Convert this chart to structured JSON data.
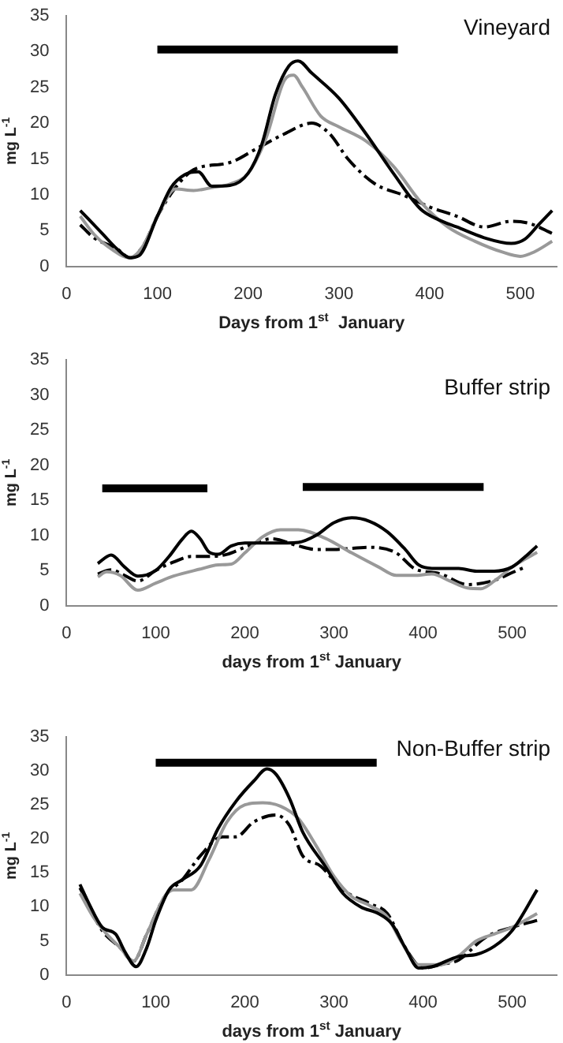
{
  "chart_data": [
    {
      "type": "line",
      "annotations": [
        "Vineyard"
      ],
      "xlabel": "Days from 1$^{st}$  January",
      "ylabel": "mg L$^{-1}$",
      "xlim": [
        0,
        540
      ],
      "xticks": [
        0,
        100,
        200,
        300,
        400,
        500
      ],
      "ylim": [
        0,
        35
      ],
      "yticks": [
        0,
        5,
        10,
        15,
        20,
        25,
        30,
        35
      ],
      "grid": false,
      "legend": false,
      "series": [
        {
          "type": "line",
          "color": "#000000",
          "line_style": "solid",
          "x": [
            15,
            40,
            55,
            70,
            80,
            100,
            115,
            130,
            145,
            160,
            180,
            200,
            215,
            230,
            245,
            255,
            270,
            300,
            330,
            360,
            390,
            410,
            430,
            460,
            490,
            505,
            520,
            535
          ],
          "values": [
            7.8,
            4.5,
            2.5,
            1.2,
            1.5,
            7,
            11,
            12.8,
            13.2,
            11.2,
            11.3,
            13,
            17,
            24,
            28,
            28.7,
            27,
            23.5,
            18.5,
            13,
            8,
            6.5,
            5.5,
            4,
            3.2,
            3.8,
            5.8,
            7.8
          ]
        },
        {
          "type": "line",
          "color": "#999999",
          "line_style": "solid",
          "x": [
            15,
            30,
            45,
            70,
            85,
            100,
            120,
            140,
            160,
            180,
            200,
            220,
            240,
            250,
            260,
            280,
            300,
            330,
            360,
            390,
            420,
            450,
            480,
            500,
            515,
            535
          ],
          "values": [
            7,
            4.5,
            2.8,
            1.2,
            3,
            7,
            10.8,
            10.6,
            11,
            11.5,
            13,
            18,
            26,
            26.7,
            25,
            21,
            19.5,
            17.5,
            14,
            9,
            5.5,
            3.5,
            2,
            1.4,
            2,
            3.5
          ]
        },
        {
          "type": "line",
          "color": "#000000",
          "line_style": "dashed",
          "x": [
            15,
            30,
            55,
            70,
            85,
            100,
            120,
            140,
            180,
            210,
            240,
            270,
            290,
            310,
            340,
            370,
            400,
            430,
            460,
            490,
            510,
            535
          ],
          "values": [
            5.8,
            4,
            2.5,
            1.2,
            3,
            7,
            11,
            13.5,
            14.5,
            16.5,
            18.5,
            20,
            18.5,
            15,
            11.5,
            10,
            8.3,
            7,
            5.5,
            6.3,
            6,
            4.6
          ]
        },
        {
          "type": "line",
          "color": "#000000",
          "line_style": "solid",
          "x": [
            100,
            365
          ],
          "values": [
            30.3,
            30.3
          ]
        }
      ]
    },
    {
      "type": "line",
      "annotations": [
        "Buffer strip"
      ],
      "xlabel": "days from 1$^{st}$ January",
      "ylabel": "mg L$^{-1}$",
      "xlim": [
        0,
        550
      ],
      "xticks": [
        0,
        100,
        200,
        300,
        400,
        500
      ],
      "ylim": [
        0,
        35
      ],
      "yticks": [
        0,
        5,
        10,
        15,
        20,
        25,
        30,
        35
      ],
      "grid": false,
      "legend": false,
      "series": [
        {
          "type": "line",
          "color": "#000000",
          "line_style": "solid",
          "x": [
            35,
            50,
            65,
            80,
            100,
            115,
            130,
            140,
            150,
            160,
            170,
            185,
            200,
            230,
            260,
            280,
            300,
            320,
            340,
            360,
            380,
            395,
            410,
            440,
            460,
            480,
            500,
            515,
            528
          ],
          "values": [
            6,
            7.2,
            5.5,
            4.2,
            5,
            7,
            9.5,
            10.6,
            9.5,
            7.6,
            7.3,
            8.5,
            8.9,
            8.9,
            9,
            10,
            11.8,
            12.5,
            12,
            10.5,
            8,
            5.8,
            5.3,
            5.3,
            4.9,
            4.9,
            5.5,
            7,
            8.5
          ]
        },
        {
          "type": "line",
          "color": "#999999",
          "line_style": "solid",
          "x": [
            35,
            45,
            60,
            80,
            100,
            120,
            150,
            170,
            185,
            200,
            220,
            240,
            260,
            290,
            320,
            350,
            370,
            390,
            410,
            430,
            450,
            465,
            480,
            500,
            528
          ],
          "values": [
            4.1,
            4.8,
            4.3,
            2.2,
            3.2,
            4.2,
            5.2,
            5.8,
            5.9,
            7.5,
            9.8,
            10.8,
            10.8,
            9.6,
            7.5,
            5.5,
            4.3,
            4.3,
            4.5,
            3.5,
            2.5,
            2.4,
            3.5,
            5.5,
            7.6
          ]
        },
        {
          "type": "line",
          "color": "#000000",
          "line_style": "dashed",
          "x": [
            35,
            50,
            65,
            80,
            100,
            120,
            140,
            160,
            180,
            200,
            230,
            260,
            280,
            300,
            340,
            370,
            390,
            420,
            450,
            480,
            500,
            515
          ],
          "values": [
            4.5,
            5.1,
            4.3,
            3.5,
            5,
            6.2,
            7,
            7,
            7.3,
            8.3,
            9.5,
            8.5,
            8,
            8,
            8.3,
            7.5,
            5.3,
            4.5,
            3,
            3.6,
            4.7,
            5.5
          ]
        },
        {
          "type": "line",
          "color": "#000000",
          "line_style": "solid",
          "x": [
            40,
            158
          ],
          "values": [
            16.7,
            16.7
          ]
        },
        {
          "type": "line",
          "color": "#000000",
          "line_style": "solid",
          "x": [
            265,
            468
          ],
          "values": [
            16.9,
            16.9
          ]
        }
      ]
    },
    {
      "type": "line",
      "annotations": [
        "Non-Buffer strip"
      ],
      "xlabel": "days from 1$^{st}$ January",
      "ylabel": "mg L$^{-1}$",
      "xlim": [
        0,
        550
      ],
      "xticks": [
        0,
        100,
        200,
        300,
        400,
        500
      ],
      "ylim": [
        0,
        35
      ],
      "yticks": [
        0,
        5,
        10,
        15,
        20,
        25,
        30,
        35
      ],
      "grid": false,
      "legend": false,
      "series": [
        {
          "type": "line",
          "color": "#000000",
          "line_style": "solid",
          "x": [
            15,
            25,
            40,
            55,
            65,
            78,
            90,
            100,
            115,
            130,
            150,
            170,
            190,
            210,
            225,
            235,
            250,
            265,
            290,
            310,
            330,
            350,
            365,
            380,
            395,
            410,
            440,
            460,
            480,
            500,
            528
          ],
          "values": [
            13.3,
            10.5,
            7,
            6,
            3.5,
            1.2,
            4,
            8,
            12.5,
            14,
            16,
            21.5,
            25.5,
            28.5,
            30.3,
            29.5,
            26,
            21,
            16,
            12,
            10,
            9,
            7.5,
            4,
            1,
            1.2,
            2.7,
            3,
            4.2,
            6.5,
            12.5
          ]
        },
        {
          "type": "line",
          "color": "#999999",
          "line_style": "solid",
          "x": [
            15,
            30,
            45,
            60,
            75,
            90,
            110,
            120,
            140,
            160,
            180,
            200,
            220,
            240,
            260,
            280,
            300,
            320,
            340,
            360,
            375,
            395,
            420,
            440,
            460,
            480,
            500,
            528
          ],
          "values": [
            12,
            8.5,
            6,
            4,
            2,
            6,
            11.5,
            12.5,
            12.5,
            17,
            22.5,
            25,
            25.3,
            24.8,
            23,
            19,
            14.5,
            11.5,
            10.2,
            8.5,
            5,
            1.5,
            1.5,
            2.8,
            5,
            6,
            7,
            9
          ]
        },
        {
          "type": "line",
          "color": "#000000",
          "line_style": "dashed",
          "x": [
            15,
            40,
            60,
            75,
            90,
            110,
            130,
            150,
            175,
            190,
            210,
            235,
            250,
            265,
            285,
            310,
            340,
            360,
            380,
            400,
            420,
            440,
            470,
            500,
            528
          ],
          "values": [
            12.8,
            6.5,
            4,
            2,
            6,
            11.5,
            14,
            17.5,
            20.3,
            20.3,
            22.5,
            23.5,
            22,
            17.5,
            16,
            12.5,
            10.5,
            9,
            4,
            1,
            1.5,
            2.2,
            5.5,
            7,
            8
          ]
        },
        {
          "type": "line",
          "color": "#000000",
          "line_style": "solid",
          "x": [
            100,
            348
          ],
          "values": [
            31.2,
            31.2
          ]
        }
      ]
    }
  ]
}
